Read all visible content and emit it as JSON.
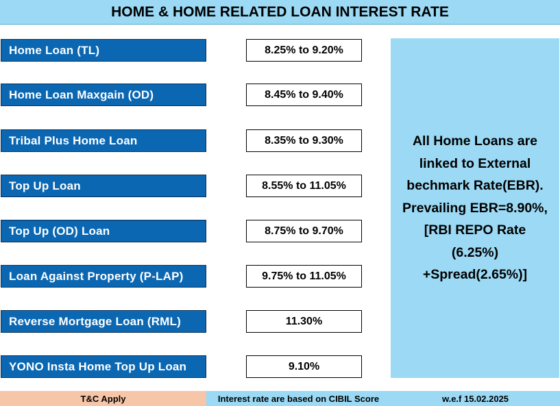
{
  "title": "HOME & HOME RELATED LOAN INTEREST RATE",
  "loans": [
    {
      "name": "Home Loan (TL)",
      "rate": "8.25% to 9.20%"
    },
    {
      "name": "Home Loan  Maxgain (OD)",
      "rate": "8.45% to 9.40%"
    },
    {
      "name": "Tribal Plus Home Loan",
      "rate": "8.35% to 9.30%"
    },
    {
      "name": "Top Up Loan",
      "rate": "8.55% to 11.05%"
    },
    {
      "name": "Top  Up (OD) Loan",
      "rate": "8.75% to 9.70%"
    },
    {
      "name": "Loan Against Property (P-LAP)",
      "rate": "9.75% to 11.05%"
    },
    {
      "name": "Reverse Mortgage Loan (RML)",
      "rate": "11.30%"
    },
    {
      "name": "YONO Insta Home Top Up Loan",
      "rate": "9.10%"
    }
  ],
  "info": {
    "lines": [
      "All Home Loans are",
      "linked to External",
      "bechmark Rate(EBR).",
      "Prevailing EBR=8.90%,",
      "[RBI REPO Rate",
      "(6.25%)",
      "+Spread(2.65%)]"
    ]
  },
  "footer": {
    "tc": "T&C Apply",
    "note": "Interest rate are based on CIBIL Score",
    "effective": "w.e.f 15.02.2025"
  },
  "colors": {
    "title_bg": "#9bd9f4",
    "loan_name_bg": "#0b67b2",
    "info_bg": "#9bd9f4",
    "tc_bg": "#f7c6a9"
  }
}
